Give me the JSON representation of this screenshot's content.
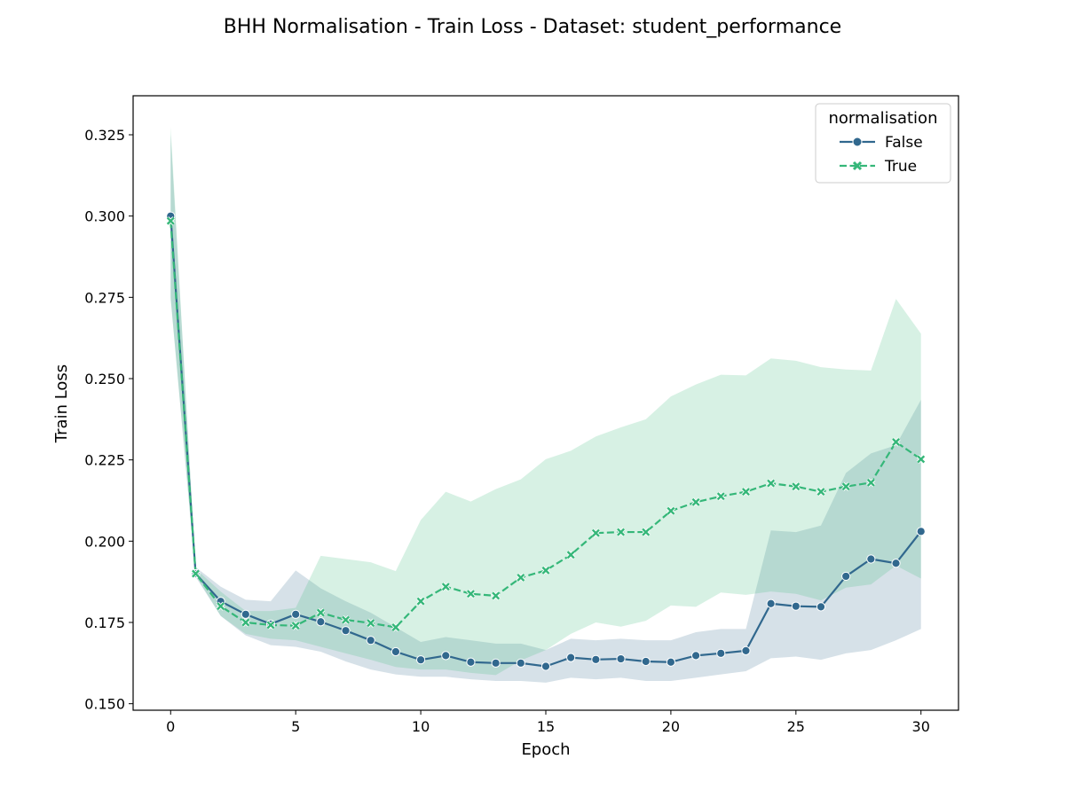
{
  "chart_data": {
    "type": "line",
    "title": "BHH Normalisation - Train Loss - Dataset: student_performance",
    "xlabel": "Epoch",
    "ylabel": "Train Loss",
    "xlim": [
      -1.5,
      31.5
    ],
    "ylim": [
      0.148,
      0.337
    ],
    "xticks": [
      0,
      5,
      10,
      15,
      20,
      25,
      30
    ],
    "yticks": [
      0.15,
      0.175,
      0.2,
      0.225,
      0.25,
      0.275,
      0.3,
      0.325
    ],
    "ytick_labels": [
      "0.150",
      "0.175",
      "0.200",
      "0.225",
      "0.250",
      "0.275",
      "0.300",
      "0.325"
    ],
    "grid": false,
    "legend": {
      "title": "normalisation",
      "position": "top-right"
    },
    "x": [
      0,
      1,
      2,
      3,
      4,
      5,
      6,
      7,
      8,
      9,
      10,
      11,
      12,
      13,
      14,
      15,
      16,
      17,
      18,
      19,
      20,
      21,
      22,
      23,
      24,
      25,
      26,
      27,
      28,
      29,
      30
    ],
    "series": [
      {
        "name": "False",
        "color": "#31688e",
        "marker": "circle",
        "linestyle": "solid",
        "values": [
          0.3,
          0.19,
          0.1815,
          0.1775,
          0.1745,
          0.1775,
          0.1752,
          0.1725,
          0.1695,
          0.166,
          0.1635,
          0.1648,
          0.1628,
          0.1625,
          0.1625,
          0.1615,
          0.1642,
          0.1636,
          0.1638,
          0.163,
          0.1628,
          0.1648,
          0.1655,
          0.1663,
          0.1808,
          0.18,
          0.1798,
          0.1892,
          0.1945,
          0.1932,
          0.203
        ],
        "ci_lower": [
          0.275,
          0.189,
          0.177,
          0.171,
          0.168,
          0.1675,
          0.166,
          0.163,
          0.1605,
          0.159,
          0.1583,
          0.1583,
          0.1575,
          0.157,
          0.157,
          0.1565,
          0.158,
          0.1575,
          0.158,
          0.157,
          0.157,
          0.158,
          0.159,
          0.16,
          0.164,
          0.1645,
          0.1635,
          0.1655,
          0.1665,
          0.1695,
          0.173
        ],
        "ci_upper": [
          0.325,
          0.192,
          0.186,
          0.182,
          0.1815,
          0.191,
          0.1855,
          0.1815,
          0.178,
          0.1735,
          0.169,
          0.1705,
          0.1695,
          0.1685,
          0.1685,
          0.1665,
          0.17,
          0.1695,
          0.17,
          0.1695,
          0.1695,
          0.172,
          0.173,
          0.173,
          0.2033,
          0.2028,
          0.2048,
          0.221,
          0.227,
          0.2295,
          0.2435
        ]
      },
      {
        "name": "True",
        "color": "#35b779",
        "marker": "x",
        "linestyle": "dashed",
        "values": [
          0.2985,
          0.19,
          0.18,
          0.175,
          0.1742,
          0.174,
          0.178,
          0.1758,
          0.1748,
          0.1735,
          0.1815,
          0.186,
          0.1838,
          0.1832,
          0.1888,
          0.191,
          0.1958,
          0.2025,
          0.2028,
          0.2028,
          0.2093,
          0.212,
          0.2138,
          0.2152,
          0.2178,
          0.2168,
          0.2152,
          0.2168,
          0.218,
          0.2305,
          0.2252
        ],
        "ci_lower": [
          0.2745,
          0.1895,
          0.177,
          0.1715,
          0.17,
          0.1695,
          0.1675,
          0.1655,
          0.1635,
          0.1613,
          0.1605,
          0.1605,
          0.1595,
          0.1588,
          0.1633,
          0.1665,
          0.1715,
          0.175,
          0.1737,
          0.1755,
          0.1802,
          0.1798,
          0.1842,
          0.1835,
          0.1845,
          0.1838,
          0.1818,
          0.1857,
          0.1867,
          0.1925,
          0.1885
        ],
        "ci_upper": [
          0.3275,
          0.1915,
          0.1845,
          0.1785,
          0.1785,
          0.1795,
          0.1955,
          0.1945,
          0.1935,
          0.1908,
          0.2065,
          0.2152,
          0.2122,
          0.216,
          0.219,
          0.2252,
          0.2278,
          0.2322,
          0.235,
          0.2375,
          0.2445,
          0.2482,
          0.2512,
          0.251,
          0.2562,
          0.2555,
          0.2535,
          0.2528,
          0.2525,
          0.2745,
          0.2638
        ]
      }
    ]
  }
}
